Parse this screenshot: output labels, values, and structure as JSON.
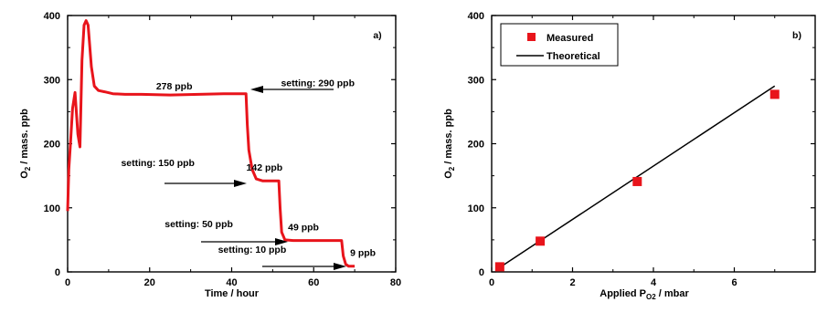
{
  "chart_data": [
    {
      "type": "line",
      "panel_label": "a)",
      "xlabel": "Time / hour",
      "ylabel_main": "O",
      "ylabel_sub": "2",
      "ylabel_rest": " / mass. ppb",
      "xlim": [
        0,
        80
      ],
      "ylim": [
        0,
        400
      ],
      "xticks": [
        0,
        20,
        40,
        60,
        80
      ],
      "yticks": [
        0,
        100,
        200,
        300,
        400
      ],
      "color": "#e8141b",
      "series": [
        {
          "x": [
            0,
            0.3,
            0.7,
            1.2,
            1.8,
            2.5,
            3.0,
            3.5,
            4.0,
            4.5,
            5.0,
            5.3,
            5.8,
            6.5,
            7.5,
            9,
            11,
            14,
            18,
            25,
            32,
            38,
            42,
            43.5,
            43.8,
            44.2,
            45,
            46,
            47.5,
            50,
            51.5,
            51.8,
            52.2,
            53,
            55,
            60,
            65,
            66.8,
            67.2,
            67.8,
            68.5,
            70
          ],
          "y": [
            95,
            160,
            200,
            255,
            280,
            215,
            195,
            330,
            385,
            392,
            385,
            360,
            320,
            290,
            283,
            281,
            278,
            277,
            277,
            276,
            277,
            278,
            278,
            278,
            230,
            190,
            160,
            145,
            142,
            142,
            142,
            100,
            62,
            50,
            49,
            49,
            49,
            49,
            25,
            12,
            9,
            9
          ]
        }
      ],
      "annotations": [
        {
          "text": "278 ppb",
          "x": 26,
          "y": 285
        },
        {
          "text": "setting: 290 ppb",
          "x": 61,
          "y": 290
        },
        {
          "text": "setting: 150 ppb",
          "x": 22,
          "y": 165
        },
        {
          "text": "142 ppb",
          "x": 48,
          "y": 158
        },
        {
          "text": "setting: 50 ppb",
          "x": 32,
          "y": 70
        },
        {
          "text": "49 ppb",
          "x": 57.5,
          "y": 65
        },
        {
          "text": "setting: 10 ppb",
          "x": 45,
          "y": 30
        },
        {
          "text": "9 ppb",
          "x": 72,
          "y": 25
        }
      ]
    },
    {
      "type": "scatter",
      "panel_label": "b)",
      "xlabel_main": "Applied P",
      "xlabel_sub": "O2",
      "xlabel_rest": " / mbar",
      "ylabel_main": "O",
      "ylabel_sub": "2",
      "ylabel_rest": " / mass. ppb",
      "xlim": [
        0,
        8
      ],
      "ylim": [
        0,
        400
      ],
      "xticks": [
        0,
        2,
        4,
        6
      ],
      "yticks": [
        0,
        100,
        200,
        300,
        400
      ],
      "legend": [
        "Measured",
        "Theoretical"
      ],
      "legend_position": "top-left",
      "marker_color": "#e8141b",
      "line_color": "#000000",
      "series": [
        {
          "name": "Measured",
          "x": [
            0.2,
            1.2,
            3.6,
            7.0
          ],
          "y": [
            8,
            48,
            141,
            277
          ]
        },
        {
          "name": "Theoretical",
          "x": [
            0.2,
            7.0
          ],
          "y": [
            7,
            290
          ]
        }
      ]
    }
  ]
}
